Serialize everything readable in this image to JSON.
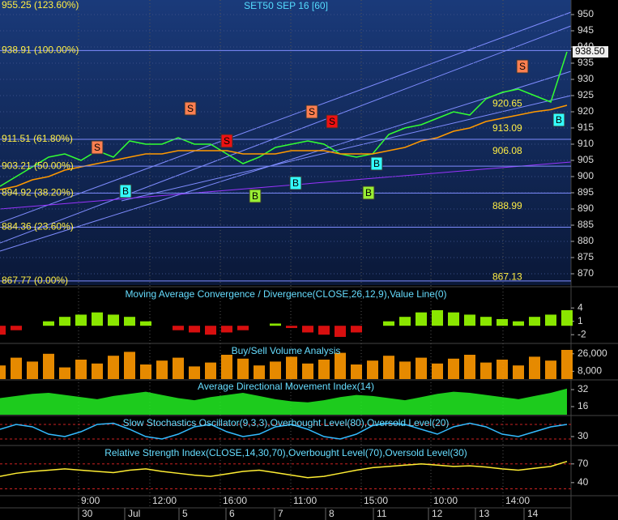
{
  "chart_data": [
    {
      "type": "line",
      "title": "SET50 SEP 16   [60]",
      "x": [
        0,
        4,
        8,
        12,
        16,
        20,
        24,
        28,
        32,
        36,
        40,
        44,
        48,
        52,
        56,
        60,
        64,
        68,
        72,
        76,
        80,
        84,
        88,
        92,
        96,
        100,
        104,
        108,
        112,
        116,
        120,
        124,
        128,
        132,
        136,
        140
      ],
      "xlim": [
        0,
        141
      ],
      "xticks": [
        {
          "value": 19.4,
          "label": "9:00"
        },
        {
          "value": 37,
          "label": "12:00"
        },
        {
          "value": 54.4,
          "label": "16:00"
        },
        {
          "value": 71.8,
          "label": "11:00"
        },
        {
          "value": 89.2,
          "label": "15:00"
        },
        {
          "value": 106.4,
          "label": "10:00"
        },
        {
          "value": 124.2,
          "label": "14:00"
        }
      ],
      "date_ticks": [
        {
          "value": 19.4,
          "label": "30"
        },
        {
          "value": 30.8,
          "label": "Jul"
        },
        {
          "value": 44.2,
          "label": "5"
        },
        {
          "value": 55.8,
          "label": "6"
        },
        {
          "value": 67.8,
          "label": "7"
        },
        {
          "value": 80.4,
          "label": "8"
        },
        {
          "value": 92.2,
          "label": "11"
        },
        {
          "value": 105.8,
          "label": "12"
        },
        {
          "value": 117.4,
          "label": "13"
        },
        {
          "value": 129.4,
          "label": "14"
        }
      ],
      "ylim": [
        866.5,
        954.5
      ],
      "yticks": [
        870,
        875,
        880,
        885,
        890,
        895,
        900,
        905,
        910,
        915,
        920,
        925,
        930,
        935,
        940,
        945,
        950
      ],
      "grid": true,
      "series": [
        {
          "color": "#33ff33",
          "values": [
            897,
            900,
            903,
            906,
            907,
            905,
            908,
            906,
            911,
            910,
            910,
            912,
            910,
            910,
            907,
            904,
            906,
            909,
            910,
            911,
            910,
            907,
            906,
            907,
            913,
            915,
            916,
            918,
            920,
            919,
            924,
            926,
            927,
            925,
            923,
            938.5
          ]
        },
        {
          "color": "#ff9900",
          "values": [
            896,
            897,
            899,
            900,
            902,
            903,
            904,
            905,
            906,
            907,
            907,
            908,
            908,
            908,
            908,
            907,
            907,
            907,
            908,
            908,
            908,
            907,
            907,
            907,
            908,
            909,
            911,
            912,
            914,
            915,
            917,
            918,
            919,
            920,
            920.65,
            922
          ]
        }
      ],
      "fib_levels": [
        {
          "value": 955.25,
          "label": "955.25 (123.60%)"
        },
        {
          "value": 938.91,
          "label": "938.91 (100.00%)"
        },
        {
          "value": 911.51,
          "label": "911.51 (61.80%)"
        },
        {
          "value": 903.21,
          "label": "903.21 (50.00%)"
        },
        {
          "value": 894.92,
          "label": "894.92 (38.20%)"
        },
        {
          "value": 884.36,
          "label": "884.36 (23.60%)"
        },
        {
          "value": 867.77,
          "label": "867.77 (0.00%)"
        }
      ],
      "level_tags": [
        920.65,
        913.09,
        906.08,
        888.99,
        867.13
      ],
      "last_price": {
        "value": 938.5,
        "label": "938.50"
      },
      "signals": [
        {
          "label": "S",
          "x": 24,
          "value": 909,
          "color": "#ff7f50"
        },
        {
          "label": "B",
          "x": 31,
          "value": 895.5,
          "color": "#33ffff"
        },
        {
          "label": "S",
          "x": 47,
          "value": 921,
          "color": "#ff7f50"
        },
        {
          "label": "S",
          "x": 56,
          "value": 911,
          "color": "#ee1111"
        },
        {
          "label": "B",
          "x": 63,
          "value": 894,
          "color": "#99ee33"
        },
        {
          "label": "B",
          "x": 73,
          "value": 898,
          "color": "#33ffff"
        },
        {
          "label": "S",
          "x": 77,
          "value": 920,
          "color": "#ff7f50"
        },
        {
          "label": "S",
          "x": 82,
          "value": 917,
          "color": "#ee1111"
        },
        {
          "label": "B",
          "x": 91,
          "value": 895,
          "color": "#99ee33"
        },
        {
          "label": "B",
          "x": 93,
          "value": 904,
          "color": "#33ffff"
        },
        {
          "label": "S",
          "x": 129,
          "value": 934,
          "color": "#ff7f50"
        },
        {
          "label": "B",
          "x": 138,
          "value": 917.5,
          "color": "#33ffff"
        }
      ]
    },
    {
      "type": "bar",
      "title": "Moving Average Convergence / Divergence(CLOSE,26,12,9),Value Line(0)",
      "ylim": [
        -3.6,
        8.4
      ],
      "yticks": [
        4,
        1,
        -2
      ],
      "colors": [
        "#99ff00",
        "#ee1111"
      ],
      "values": [
        -2,
        -1,
        0,
        1,
        2,
        2.5,
        3,
        2.5,
        2,
        1,
        0,
        -1,
        -1.5,
        -2,
        -1.5,
        -1,
        0,
        0.5,
        -0.5,
        -1.5,
        -2,
        -2.5,
        -1.5,
        0,
        1,
        2,
        3,
        3.5,
        3,
        2.5,
        2,
        1.5,
        1,
        2,
        2.5,
        3.5
      ]
    },
    {
      "type": "bar",
      "title": "Buy/Sell Volume Analysis",
      "ylim": [
        0,
        35000
      ],
      "yticks": [
        {
          "value": 26000,
          "label": "26,000"
        },
        {
          "value": 8000,
          "label": "8,000"
        }
      ],
      "colors": [
        "#ff9900",
        "#9988dd"
      ],
      "values": [
        14000,
        22000,
        18000,
        26000,
        12000,
        20000,
        16000,
        24000,
        28000,
        15000,
        19000,
        22000,
        13000,
        17000,
        25000,
        21000,
        14000,
        18000,
        23000,
        16000,
        20000,
        27000,
        15000,
        19000,
        24000,
        18000,
        22000,
        16000,
        21000,
        25000,
        17000,
        20000,
        14000,
        23000,
        19000,
        30000
      ]
    },
    {
      "type": "area",
      "title": "Average Directional Movement Index(14)",
      "ylim": [
        8.4,
        40.4
      ],
      "yticks": [
        32,
        16
      ],
      "color": "#22ee22",
      "values": [
        24,
        26,
        28,
        29,
        27,
        25,
        23,
        26,
        28,
        30,
        27,
        24,
        22,
        25,
        27,
        29,
        26,
        23,
        21,
        20,
        22,
        25,
        27,
        26,
        24,
        22,
        25,
        28,
        30,
        29,
        27,
        25,
        23,
        26,
        29,
        33
      ]
    },
    {
      "type": "line",
      "title": "Slow Stochastics Oscillator(9,3,3),Overbought Level(80),Oversold Level(20)",
      "ylim": [
        0,
        110
      ],
      "yticks": [
        30
      ],
      "levels": [
        80,
        20
      ],
      "color": "#33bbff",
      "values": [
        60,
        80,
        70,
        40,
        30,
        50,
        80,
        85,
        60,
        30,
        20,
        40,
        70,
        80,
        50,
        30,
        40,
        70,
        80,
        60,
        30,
        20,
        40,
        75,
        85,
        80,
        60,
        40,
        70,
        85,
        70,
        40,
        30,
        50,
        70,
        80
      ]
    },
    {
      "type": "line",
      "title": "Relative Strength Index(CLOSE,14,30,70),Overbought Level(70),Oversold Level(30)",
      "ylim": [
        19,
        97
      ],
      "yticks": [
        70,
        40
      ],
      "levels": [
        70,
        30
      ],
      "color": "#ffee33",
      "values": [
        50,
        55,
        58,
        60,
        62,
        60,
        58,
        56,
        60,
        62,
        58,
        55,
        52,
        50,
        54,
        58,
        60,
        56,
        52,
        48,
        50,
        55,
        60,
        64,
        66,
        68,
        70,
        68,
        66,
        67,
        65,
        62,
        60,
        63,
        66,
        74
      ]
    }
  ]
}
